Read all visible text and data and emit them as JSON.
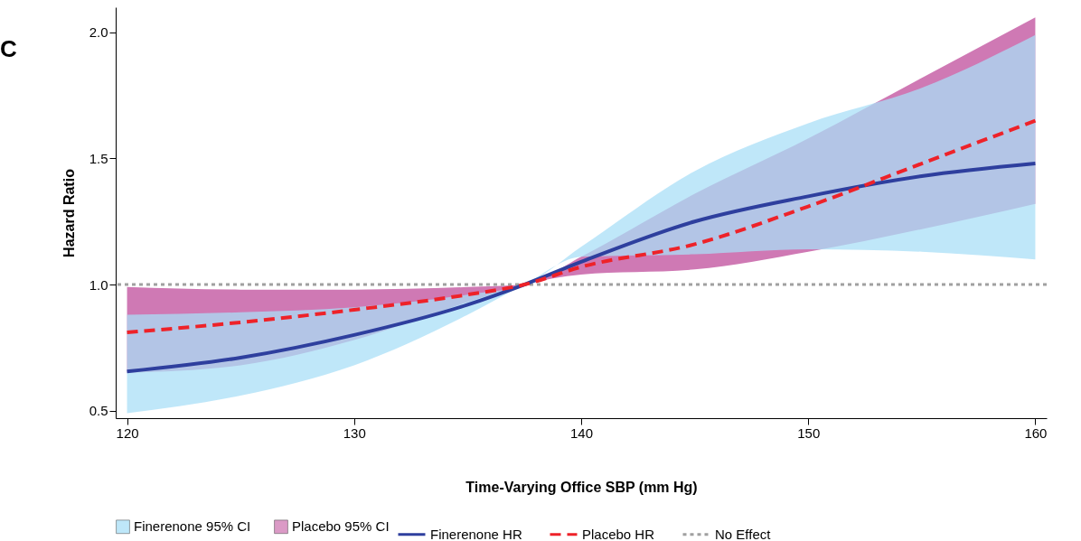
{
  "chart_data": {
    "type": "line",
    "title": "C",
    "xlabel": "Time-Varying Office SBP (mm Hg)",
    "ylabel": "Hazard Ratio",
    "x": [
      120,
      125,
      130,
      135,
      137.5,
      140,
      145,
      150,
      155,
      160
    ],
    "series": [
      {
        "name": "Finerenone 95% CI",
        "type": "area",
        "color": "#a9dff7",
        "values": [
          null,
          null,
          null,
          null,
          null,
          null,
          null,
          null,
          null,
          null
        ],
        "lower": [
          0.49,
          0.56,
          0.68,
          0.88,
          1.0,
          1.11,
          1.12,
          1.14,
          1.13,
          1.1
        ],
        "upper": [
          0.88,
          0.89,
          0.91,
          0.96,
          1.0,
          1.15,
          1.45,
          1.64,
          1.78,
          1.99
        ]
      },
      {
        "name": "Placebo 95% CI",
        "type": "area",
        "color": "#cf79b4",
        "values": [
          null,
          null,
          null,
          null,
          null,
          null,
          null,
          null,
          null,
          null
        ],
        "lower": [
          0.65,
          0.68,
          0.78,
          0.93,
          1.0,
          1.04,
          1.06,
          1.13,
          1.22,
          1.32
        ],
        "upper": [
          0.99,
          0.98,
          0.98,
          0.99,
          1.0,
          1.11,
          1.36,
          1.58,
          1.82,
          2.06
        ]
      },
      {
        "name": "Finerenone HR",
        "type": "line",
        "color": "#2e3f9e",
        "line_style": "solid",
        "values": [
          0.655,
          0.71,
          0.8,
          0.92,
          1.0,
          1.09,
          1.25,
          1.35,
          1.43,
          1.48
        ]
      },
      {
        "name": "Placebo HR",
        "type": "line",
        "color": "#ee2229",
        "line_style": "dashed",
        "values": [
          0.81,
          0.85,
          0.9,
          0.96,
          1.0,
          1.07,
          1.16,
          1.31,
          1.48,
          1.65
        ]
      }
    ],
    "ref_lines": [
      {
        "axis": "y",
        "value": 1,
        "label": "No Effect",
        "color": "#a0a0a0",
        "line_style": "dotted"
      }
    ],
    "xlim": [
      119.5,
      160.5
    ],
    "ylim": [
      0.47,
      2.1
    ],
    "xticks": [
      120,
      130,
      140,
      150,
      160
    ],
    "yticks": [
      {
        "value": 0.5,
        "label": "0.5"
      },
      {
        "value": 1,
        "label": "1.0"
      },
      {
        "value": 1.5,
        "label": "1.5"
      },
      {
        "value": 2,
        "label": "2.0"
      }
    ],
    "grid": false,
    "legend": "bottom",
    "marker": "none"
  }
}
